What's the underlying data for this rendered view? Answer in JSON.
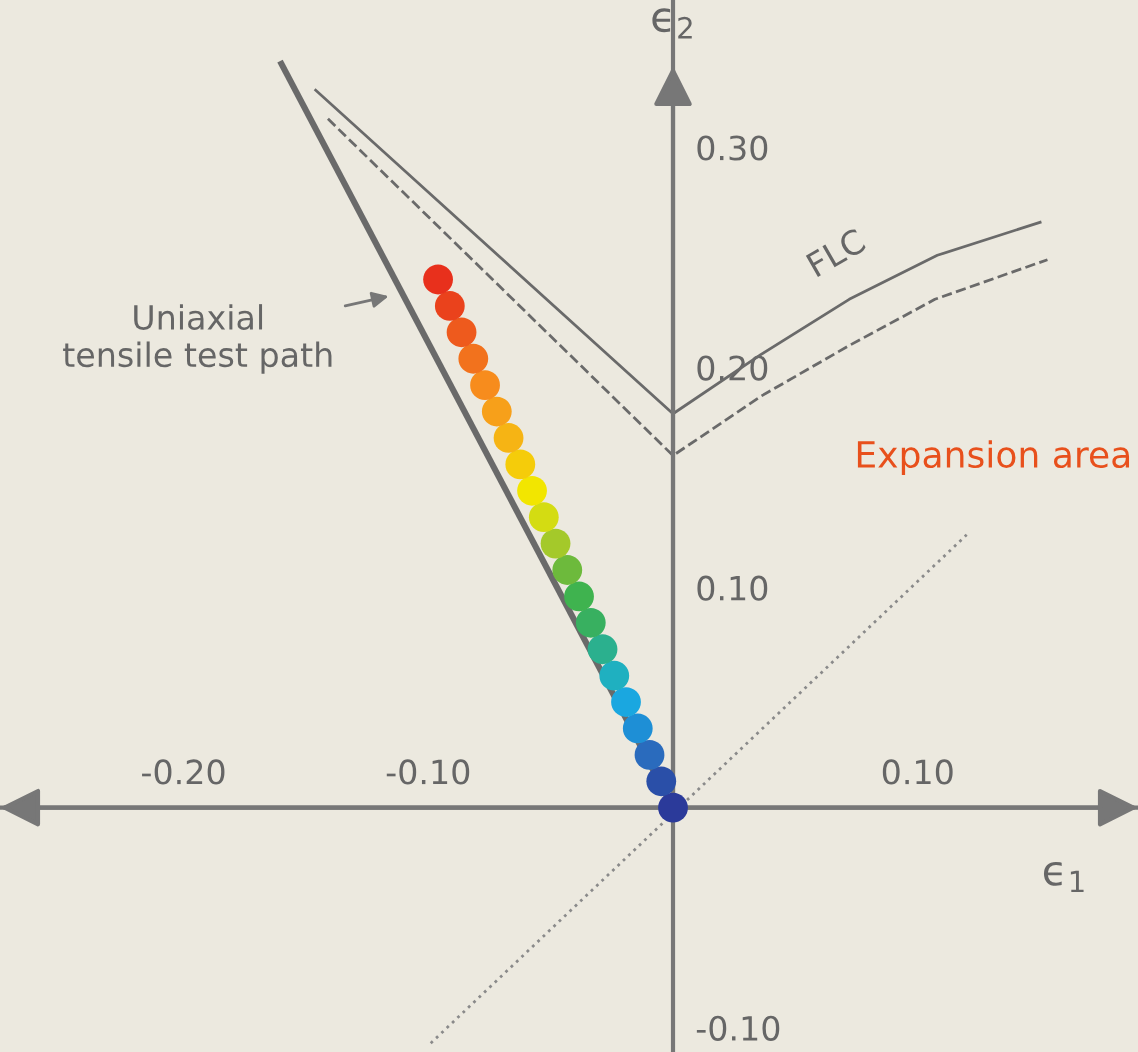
{
  "chart_data": {
    "type": "line",
    "xlabel": "ϵ$_{1}$",
    "ylabel": "ϵ$_{2}$",
    "xlim": [
      -0.275,
      0.19
    ],
    "ylim": [
      -0.111,
      0.367
    ],
    "xticks": [
      {
        "value": -0.2,
        "label": "-0.20"
      },
      {
        "value": -0.1,
        "label": "-0.10"
      },
      {
        "value": 0.1,
        "label": "0.10"
      }
    ],
    "yticks": [
      {
        "value": -0.1,
        "label": "-0.10"
      },
      {
        "value": 0.1,
        "label": "0.10"
      },
      {
        "value": 0.2,
        "label": "0.20"
      },
      {
        "value": 0.3,
        "label": "0.30"
      }
    ],
    "grid": false,
    "legend": false,
    "marker": "none",
    "series": [
      {
        "color": "#6a6a6a",
        "line_style": "solid",
        "x": [
          0,
          -0.16
        ],
        "values": [
          0,
          0.338
        ]
      },
      {
        "name": "FLC",
        "color": "#6a6a6a",
        "line_style": "solid",
        "x": [
          -0.146,
          0,
          0.036,
          0.072,
          0.108,
          0.15
        ],
        "values": [
          0.326,
          0.179,
          0.206,
          0.231,
          0.251,
          0.266
        ]
      },
      {
        "color": "#6a6a6a",
        "line_style": "dashed",
        "x": [
          -0.141,
          0,
          0.036,
          0.072,
          0.107,
          0.153
        ],
        "values": [
          0.313,
          0.16,
          0.187,
          0.21,
          0.231,
          0.249
        ]
      },
      {
        "color": "#8a8a8a",
        "line_style": "dotted",
        "x": [
          -0.099,
          0.12
        ],
        "values": [
          -0.107,
          0.124
        ]
      },
      {
        "type": "scatter",
        "marker": "circle",
        "x": [
          0,
          -0.0048,
          -0.0096,
          -0.0144,
          -0.0192,
          -0.024,
          -0.0288,
          -0.0336,
          -0.0384,
          -0.0432,
          -0.048,
          -0.0528,
          -0.0576,
          -0.0624,
          -0.0672,
          -0.072,
          -0.0768,
          -0.0816,
          -0.0864,
          -0.0912,
          -0.096
        ],
        "values": [
          0,
          0.012,
          0.024,
          0.036,
          0.048,
          0.06,
          0.072,
          0.084,
          0.096,
          0.108,
          0.12,
          0.132,
          0.144,
          0.156,
          0.168,
          0.18,
          0.192,
          0.204,
          0.216,
          0.228,
          0.24
        ],
        "colors": [
          "#2b3a9a",
          "#2a4fa8",
          "#2a6bbd",
          "#1e8fd6",
          "#1aa7e0",
          "#1fb0c0",
          "#2bb08e",
          "#38b060",
          "#3fb34f",
          "#6dba3c",
          "#a4c92a",
          "#d4dc12",
          "#f2e600",
          "#f5cc0a",
          "#f6b414",
          "#f7a01a",
          "#f78c1d",
          "#f2721d",
          "#ee5a1d",
          "#ea421c",
          "#e8301c"
        ]
      }
    ],
    "annotations": [
      {
        "text": "Uniaxial\ntensile test path",
        "x": -0.114,
        "y": 0.233
      },
      "Expansion area"
    ]
  }
}
